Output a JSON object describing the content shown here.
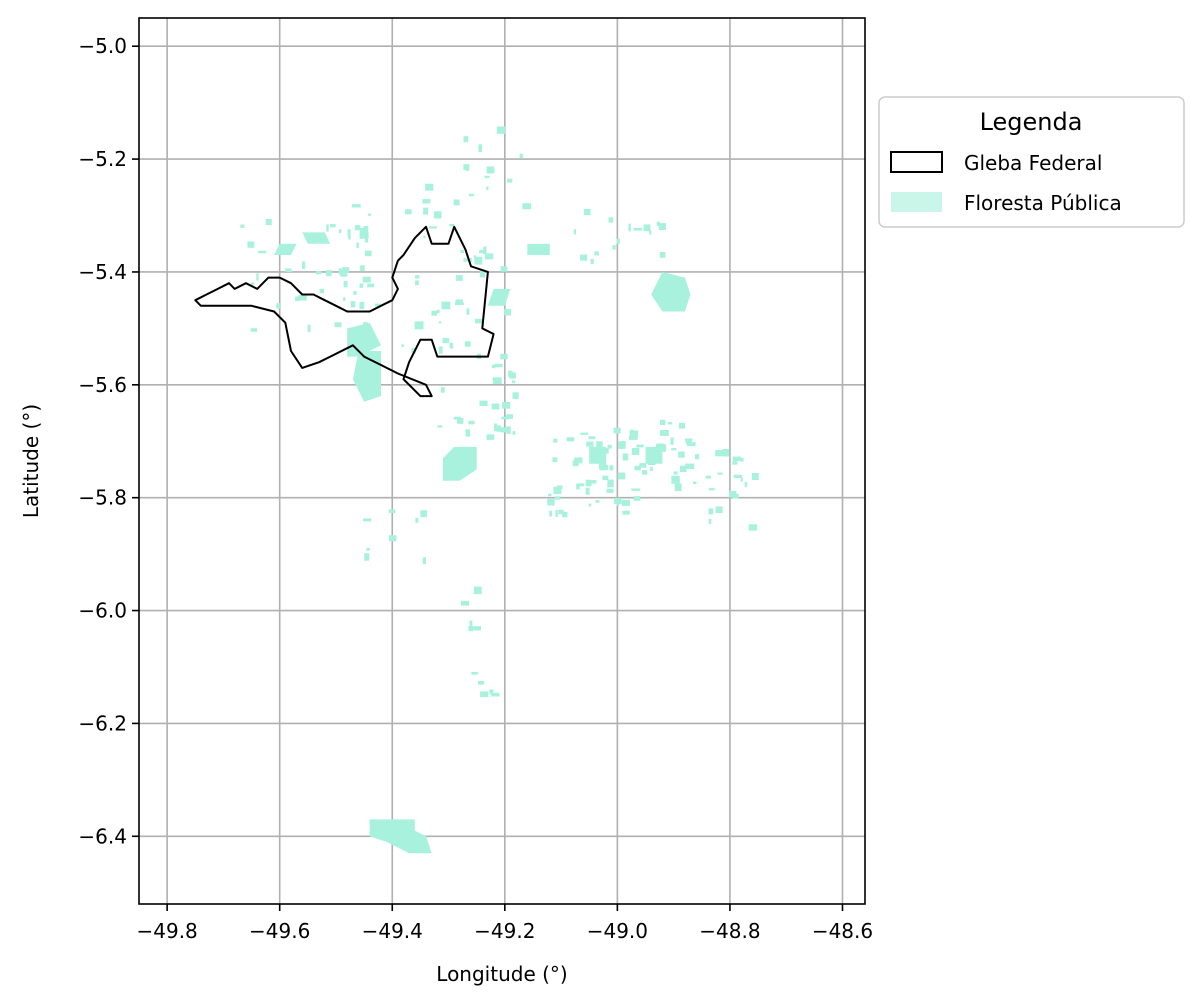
{
  "chart_data": {
    "type": "map",
    "title": "",
    "xlabel": "Longitude (°)",
    "ylabel": "Latitude (°)",
    "xlim": [
      -49.85,
      -48.56
    ],
    "ylim": [
      -6.52,
      -4.95
    ],
    "x_ticks": [
      -49.8,
      -49.6,
      -49.4,
      -49.2,
      -49.0,
      -48.8,
      -48.6
    ],
    "y_ticks": [
      -5.0,
      -5.2,
      -5.4,
      -5.6,
      -5.8,
      -6.0,
      -6.2,
      -6.4
    ],
    "x_tick_labels": [
      "−49.8",
      "−49.6",
      "−49.4",
      "−49.2",
      "−49.0",
      "−48.8",
      "−48.6"
    ],
    "y_tick_labels": [
      "−5.0",
      "−5.2",
      "−5.4",
      "−5.6",
      "−5.8",
      "−6.0",
      "−6.2",
      "−6.4"
    ],
    "grid": true,
    "legend": {
      "title": "Legenda",
      "placement": "outside-right-top",
      "entries": [
        {
          "label": "Gleba Federal",
          "style": "outline",
          "color": "#000000"
        },
        {
          "label": "Floresta Pública",
          "style": "fill",
          "color": "#a8f2dd"
        }
      ]
    },
    "colors": {
      "gleba_edge": "#000000",
      "floresta_fill": "#a8f2dd",
      "grid": "#b0b0b0"
    },
    "gleba_federal": [
      [
        -49.75,
        -5.45
      ],
      [
        -49.73,
        -5.44
      ],
      [
        -49.71,
        -5.43
      ],
      [
        -49.69,
        -5.42
      ],
      [
        -49.68,
        -5.43
      ],
      [
        -49.66,
        -5.42
      ],
      [
        -49.64,
        -5.43
      ],
      [
        -49.62,
        -5.41
      ],
      [
        -49.6,
        -5.41
      ],
      [
        -49.58,
        -5.42
      ],
      [
        -49.56,
        -5.44
      ],
      [
        -49.54,
        -5.44
      ],
      [
        -49.52,
        -5.45
      ],
      [
        -49.5,
        -5.46
      ],
      [
        -49.48,
        -5.47
      ],
      [
        -49.46,
        -5.47
      ],
      [
        -49.44,
        -5.47
      ],
      [
        -49.42,
        -5.46
      ],
      [
        -49.4,
        -5.45
      ],
      [
        -49.39,
        -5.43
      ],
      [
        -49.4,
        -5.41
      ],
      [
        -49.39,
        -5.38
      ],
      [
        -49.38,
        -5.37
      ],
      [
        -49.36,
        -5.34
      ],
      [
        -49.34,
        -5.32
      ],
      [
        -49.33,
        -5.35
      ],
      [
        -49.3,
        -5.35
      ],
      [
        -49.29,
        -5.32
      ],
      [
        -49.27,
        -5.36
      ],
      [
        -49.26,
        -5.39
      ],
      [
        -49.23,
        -5.4
      ],
      [
        -49.24,
        -5.5
      ],
      [
        -49.22,
        -5.51
      ],
      [
        -49.23,
        -5.55
      ],
      [
        -49.28,
        -5.55
      ],
      [
        -49.32,
        -5.55
      ],
      [
        -49.33,
        -5.52
      ],
      [
        -49.35,
        -5.52
      ],
      [
        -49.37,
        -5.56
      ],
      [
        -49.38,
        -5.59
      ],
      [
        -49.35,
        -5.62
      ],
      [
        -49.33,
        -5.62
      ],
      [
        -49.34,
        -5.6
      ],
      [
        -49.39,
        -5.58
      ],
      [
        -49.45,
        -5.55
      ],
      [
        -49.47,
        -5.53
      ],
      [
        -49.51,
        -5.55
      ],
      [
        -49.53,
        -5.56
      ],
      [
        -49.56,
        -5.57
      ],
      [
        -49.58,
        -5.54
      ],
      [
        -49.59,
        -5.49
      ],
      [
        -49.61,
        -5.47
      ],
      [
        -49.65,
        -5.46
      ],
      [
        -49.7,
        -5.46
      ],
      [
        -49.74,
        -5.46
      ],
      [
        -49.75,
        -5.45
      ]
    ],
    "floresta_publica": [
      [
        [
          -49.46,
          -5.54
        ],
        [
          -49.42,
          -5.54
        ],
        [
          -49.42,
          -5.62
        ],
        [
          -49.45,
          -5.63
        ],
        [
          -49.47,
          -5.59
        ]
      ],
      [
        [
          -49.29,
          -5.71
        ],
        [
          -49.25,
          -5.71
        ],
        [
          -49.25,
          -5.75
        ],
        [
          -49.28,
          -5.77
        ],
        [
          -49.31,
          -5.77
        ],
        [
          -49.31,
          -5.73
        ]
      ],
      [
        [
          -49.48,
          -5.5
        ],
        [
          -49.44,
          -5.49
        ],
        [
          -49.42,
          -5.53
        ],
        [
          -49.46,
          -5.55
        ],
        [
          -49.48,
          -5.55
        ]
      ],
      [
        [
          -48.92,
          -5.4
        ],
        [
          -48.88,
          -5.41
        ],
        [
          -48.87,
          -5.44
        ],
        [
          -48.88,
          -5.47
        ],
        [
          -48.92,
          -5.47
        ],
        [
          -48.94,
          -5.44
        ]
      ],
      [
        [
          -49.44,
          -6.37
        ],
        [
          -49.36,
          -6.37
        ],
        [
          -49.36,
          -6.39
        ],
        [
          -49.34,
          -6.4
        ],
        [
          -49.33,
          -6.43
        ],
        [
          -49.37,
          -6.43
        ],
        [
          -49.41,
          -6.41
        ],
        [
          -49.44,
          -6.4
        ]
      ],
      [
        [
          -49.56,
          -5.33
        ],
        [
          -49.52,
          -5.33
        ],
        [
          -49.51,
          -5.35
        ],
        [
          -49.55,
          -5.35
        ]
      ],
      [
        [
          -49.22,
          -5.43
        ],
        [
          -49.19,
          -5.43
        ],
        [
          -49.2,
          -5.46
        ],
        [
          -49.23,
          -5.46
        ]
      ],
      [
        [
          -49.6,
          -5.35
        ],
        [
          -49.57,
          -5.35
        ],
        [
          -49.58,
          -5.37
        ],
        [
          -49.61,
          -5.37
        ]
      ],
      [
        [
          -49.16,
          -5.35
        ],
        [
          -49.12,
          -5.35
        ],
        [
          -49.12,
          -5.37
        ],
        [
          -49.16,
          -5.37
        ]
      ],
      [
        [
          -49.05,
          -5.71
        ],
        [
          -49.02,
          -5.71
        ],
        [
          -49.02,
          -5.74
        ],
        [
          -49.05,
          -5.74
        ]
      ],
      [
        [
          -48.95,
          -5.71
        ],
        [
          -48.92,
          -5.71
        ],
        [
          -48.92,
          -5.74
        ],
        [
          -48.95,
          -5.74
        ]
      ]
    ],
    "floresta_polygon_count_note": "",
    "series": []
  }
}
